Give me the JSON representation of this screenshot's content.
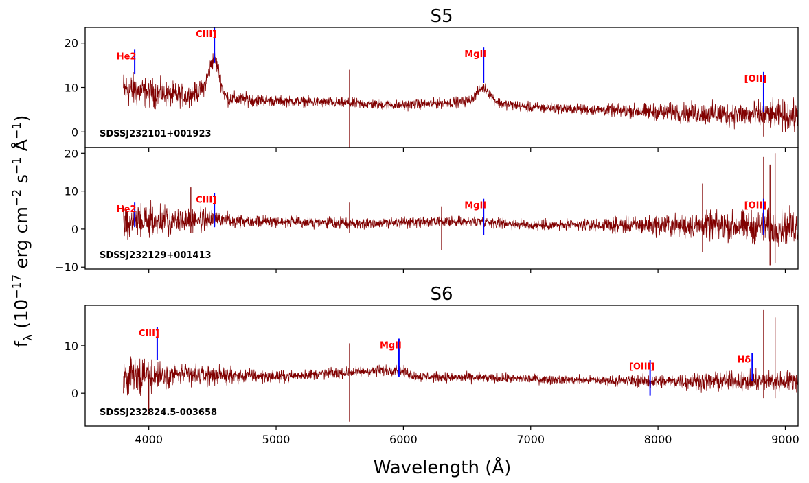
{
  "figure": {
    "xlabel": "Wavelength (Å)",
    "ylabel": "f_λ (10^-17 erg cm^-2 s^-1 Å^-1)"
  },
  "colors": {
    "spectrum": "#800000",
    "line_marker": "#0000ff",
    "line_label": "#ff0000",
    "axes": "#000000"
  },
  "chart_data": [
    {
      "type": "line",
      "title": "S5",
      "object": "SDSSJ232101+001923",
      "xlim": [
        3500,
        9100
      ],
      "ylim": [
        -3.5,
        23.5
      ],
      "yticks": [
        0,
        10,
        20
      ],
      "xticks": [
        4000,
        5000,
        6000,
        7000,
        8000,
        9000
      ],
      "show_xticklabels": false,
      "series": [
        {
          "x_range": [
            3800,
            9100
          ],
          "continuum": [
            [
              3800,
              9.5
            ],
            [
              4300,
              8.0
            ],
            [
              4510,
              10.5
            ],
            [
              4600,
              7.5
            ],
            [
              5000,
              7.0
            ],
            [
              6000,
              6.0
            ],
            [
              6600,
              7.0
            ],
            [
              7000,
              5.5
            ],
            [
              8000,
              4.5
            ],
            [
              9100,
              3.5
            ]
          ],
          "noise": [
            [
              3800,
              3.5
            ],
            [
              4300,
              2.0
            ],
            [
              5000,
              1.0
            ],
            [
              7500,
              1.0
            ],
            [
              8300,
              2.0
            ],
            [
              9100,
              3.0
            ]
          ],
          "emission": [
            {
              "x": 4515,
              "peak": 6.0,
              "width": 40
            },
            {
              "x": 6630,
              "peak": 3.0,
              "width": 50
            }
          ],
          "spikes": [
            {
              "x": 5577,
              "y": 14.0,
              "y_low": -3.5
            },
            {
              "x": 8830,
              "y": 13.0,
              "y_low": -1.0
            }
          ]
        }
      ],
      "lines": [
        {
          "label": "He2",
          "x": 3889,
          "y_top": 18.5,
          "y_bottom": 13.0
        },
        {
          "label": "CIII]",
          "x": 4515,
          "y_top": 23.5,
          "y_bottom": 15.5
        },
        {
          "label": "MgII",
          "x": 6630,
          "y_top": 19.0,
          "y_bottom": 11.0
        },
        {
          "label": "[OII]",
          "x": 8830,
          "y_top": 13.5,
          "y_bottom": 4.5
        }
      ]
    },
    {
      "type": "line",
      "title": "",
      "object": "SDSSJ232129+001413",
      "xlim": [
        3500,
        9100
      ],
      "ylim": [
        -10.5,
        21.5
      ],
      "yticks": [
        -10,
        0,
        10,
        20
      ],
      "xticks": [
        4000,
        5000,
        6000,
        7000,
        8000,
        9000
      ],
      "show_xticklabels": false,
      "series": [
        {
          "x_range": [
            3800,
            9100
          ],
          "continuum": [
            [
              3800,
              2.0
            ],
            [
              4500,
              2.5
            ],
            [
              5500,
              1.5
            ],
            [
              6630,
              2.0
            ],
            [
              7000,
              1.0
            ],
            [
              8000,
              1.0
            ],
            [
              9100,
              0.5
            ]
          ],
          "noise": [
            [
              3800,
              4.0
            ],
            [
              4500,
              2.0
            ],
            [
              5000,
              1.2
            ],
            [
              7500,
              1.2
            ],
            [
              8300,
              3.0
            ],
            [
              9100,
              4.0
            ]
          ],
          "emission": [],
          "spikes": [
            {
              "x": 4330,
              "y": 11.0,
              "y_low": -1.0
            },
            {
              "x": 5577,
              "y": 7.0,
              "y_low": -1.0
            },
            {
              "x": 6300,
              "y": 6.0,
              "y_low": -5.5
            },
            {
              "x": 8350,
              "y": 12.0,
              "y_low": -6.0
            },
            {
              "x": 8830,
              "y": 19.0,
              "y_low": -3.0
            },
            {
              "x": 8880,
              "y": 17.0,
              "y_low": -9.5
            },
            {
              "x": 8920,
              "y": 20.0,
              "y_low": -9.0
            }
          ]
        }
      ],
      "lines": [
        {
          "label": "He2",
          "x": 3889,
          "y_top": 7.0,
          "y_bottom": 0.5
        },
        {
          "label": "CIII]",
          "x": 4515,
          "y_top": 9.5,
          "y_bottom": 0.5
        },
        {
          "label": "MgII",
          "x": 6630,
          "y_top": 8.0,
          "y_bottom": -1.5
        },
        {
          "label": "[OII]",
          "x": 8830,
          "y_top": 8.0,
          "y_bottom": -1.5
        }
      ]
    },
    {
      "type": "line",
      "title": "S6",
      "object": "SDSSJ232824.5-003658",
      "xlim": [
        3500,
        9100
      ],
      "ylim": [
        -6.9,
        18.5
      ],
      "yticks": [
        0,
        10
      ],
      "xticks": [
        4000,
        5000,
        6000,
        7000,
        8000,
        9000
      ],
      "show_xticklabels": true,
      "series": [
        {
          "x_range": [
            3800,
            9100
          ],
          "continuum": [
            [
              3800,
              3.5
            ],
            [
              4100,
              4.0
            ],
            [
              5000,
              3.5
            ],
            [
              5960,
              5.0
            ],
            [
              6100,
              3.5
            ],
            [
              7000,
              3.0
            ],
            [
              8000,
              2.5
            ],
            [
              9100,
              2.5
            ]
          ],
          "noise": [
            [
              3800,
              3.5
            ],
            [
              4200,
              2.0
            ],
            [
              5000,
              1.0
            ],
            [
              7500,
              0.8
            ],
            [
              8300,
              1.5
            ],
            [
              9100,
              2.0
            ]
          ],
          "emission": [],
          "spikes": [
            {
              "x": 4000,
              "y": 4.0,
              "y_low": -4.5
            },
            {
              "x": 5577,
              "y": 10.5,
              "y_low": -6.0
            },
            {
              "x": 8830,
              "y": 17.5,
              "y_low": -1.0
            },
            {
              "x": 8920,
              "y": 16.0,
              "y_low": -1.0
            }
          ]
        }
      ],
      "lines": [
        {
          "label": "CIII]",
          "x": 4066,
          "y_top": 14.0,
          "y_bottom": 7.0
        },
        {
          "label": "MgII",
          "x": 5965,
          "y_top": 11.5,
          "y_bottom": 3.5
        },
        {
          "label": "[OIII]",
          "x": 7938,
          "y_top": 7.0,
          "y_bottom": -0.5
        },
        {
          "label": "Hδ",
          "x": 8740,
          "y_top": 8.5,
          "y_bottom": 2.5
        }
      ]
    }
  ]
}
